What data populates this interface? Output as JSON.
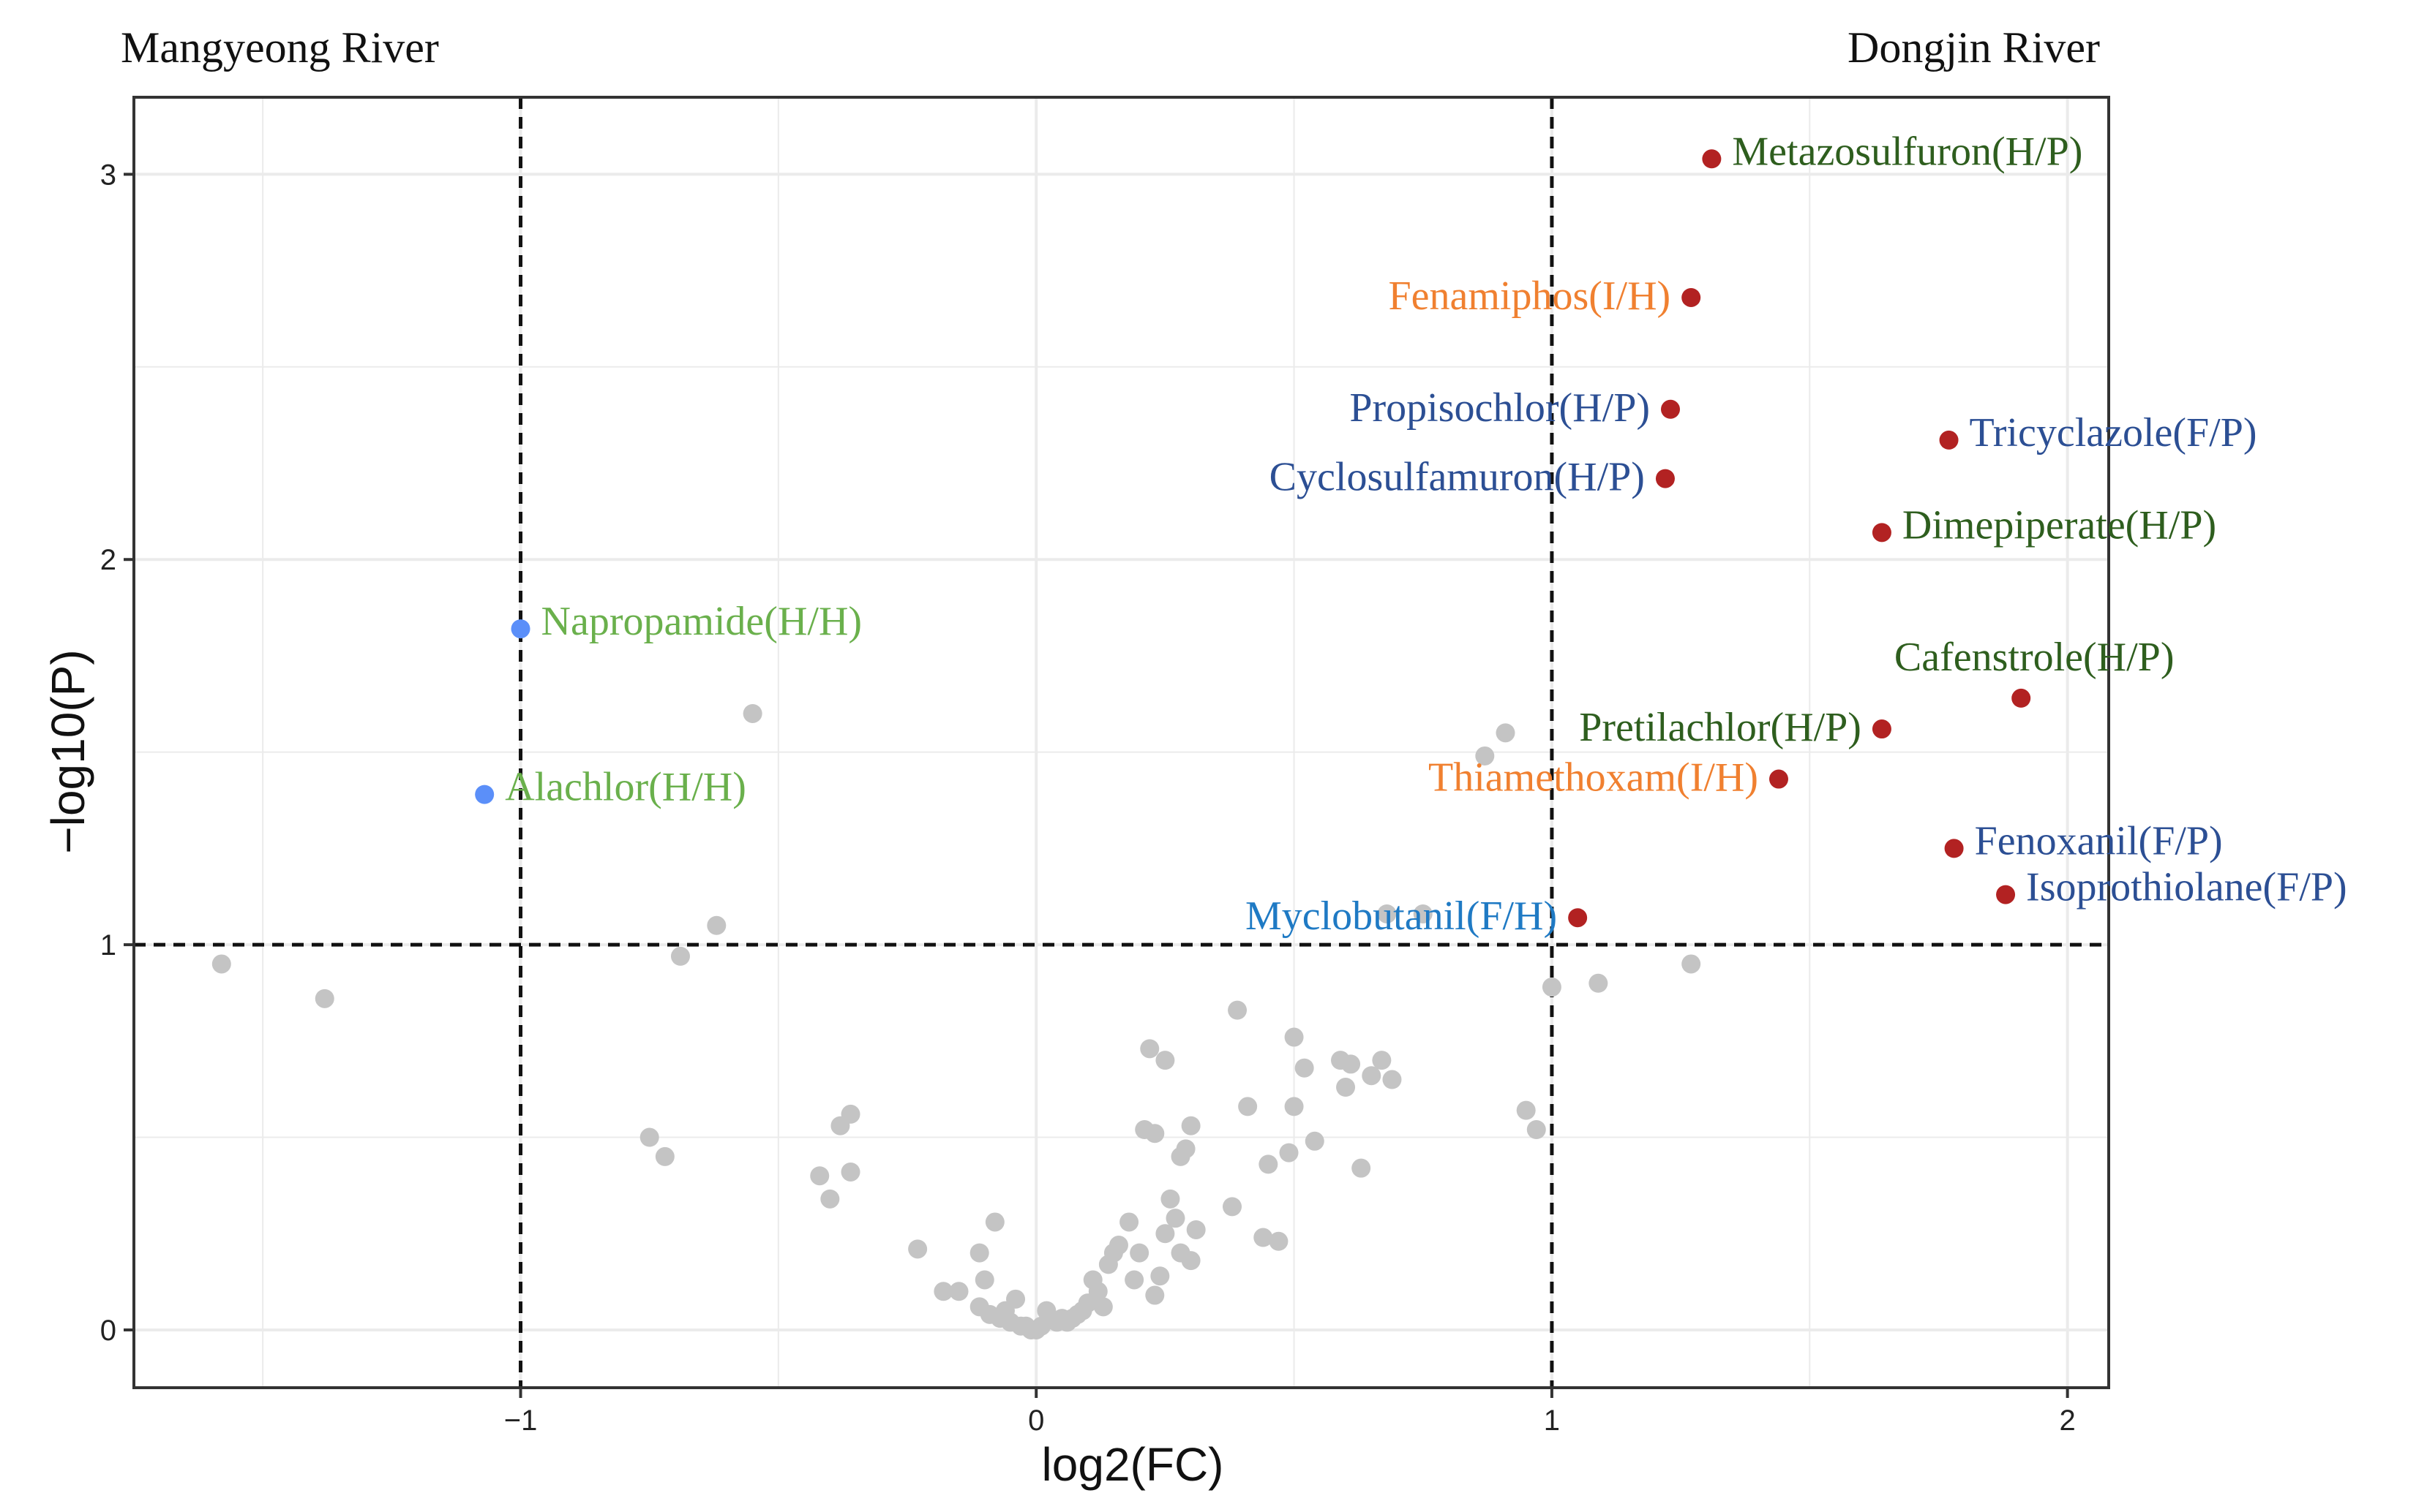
{
  "colors": {
    "background": "#ffffff",
    "grid": "#ebebeb",
    "frame": "#333333",
    "nonsignificant": "#c4c4c4",
    "up": "#b22222",
    "down": "#5b8ff9",
    "label_dark_green": "#2e5e1e",
    "label_light_green": "#6ab04c",
    "label_orange": "#f08030",
    "label_navy": "#2c4f94",
    "label_blue": "#1f7ac4"
  },
  "chart_data": {
    "type": "scatter",
    "title": "",
    "xlabel": "log2(FC)",
    "ylabel": "−log10(P)",
    "xlim": [
      -1.75,
      2.08
    ],
    "ylim": [
      -0.15,
      3.2
    ],
    "xticks": [
      -1,
      0,
      1,
      2
    ],
    "xtick_labels": [
      "−1",
      "0",
      "1",
      "2"
    ],
    "yticks": [
      0,
      1,
      2,
      3
    ],
    "ytick_labels": [
      "0",
      "1",
      "2",
      "3"
    ],
    "minor_x": [
      -1.5,
      -0.5,
      0.5,
      1.5
    ],
    "minor_y": [
      0.5,
      1.5,
      2.5
    ],
    "threshold_lines": {
      "x": [
        -1,
        1
      ],
      "y": [
        1
      ]
    },
    "grid": true,
    "corner_labels": {
      "left": "Mangyeong River",
      "right": "Dongjin River"
    },
    "labeled_points": [
      {
        "x": 1.31,
        "y": 3.04,
        "group": "up",
        "label": "Metazosulfuron(H/P)",
        "label_color": "label_dark_green",
        "anchor": "start"
      },
      {
        "x": 1.27,
        "y": 2.68,
        "group": "up",
        "label": "Fenamiphos(I/H)",
        "label_color": "label_orange",
        "anchor": "end"
      },
      {
        "x": 1.23,
        "y": 2.39,
        "group": "up",
        "label": "Propisochlor(H/P)",
        "label_color": "label_navy",
        "anchor": "end"
      },
      {
        "x": 1.22,
        "y": 2.21,
        "group": "up",
        "label": "Cyclosulfamuron(H/P)",
        "label_color": "label_navy",
        "anchor": "end"
      },
      {
        "x": 1.77,
        "y": 2.31,
        "group": "up",
        "label": "Tricyclazole(F/P)",
        "label_color": "label_navy",
        "anchor": "start"
      },
      {
        "x": 1.64,
        "y": 2.07,
        "group": "up",
        "label": "Dimepiperate(H/P)",
        "label_color": "label_dark_green",
        "anchor": "start"
      },
      {
        "x": 1.91,
        "y": 1.64,
        "group": "up",
        "label": "Cafenstrole(H/P)",
        "label_color": "label_dark_green",
        "anchor": "middle"
      },
      {
        "x": 1.64,
        "y": 1.56,
        "group": "up",
        "label": "Pretilachlor(H/P)",
        "label_color": "label_dark_green",
        "anchor": "end"
      },
      {
        "x": 1.44,
        "y": 1.43,
        "group": "up",
        "label": "Thiamethoxam(I/H)",
        "label_color": "label_orange",
        "anchor": "end"
      },
      {
        "x": 1.78,
        "y": 1.25,
        "group": "up",
        "label": "Fenoxanil(F/P)",
        "label_color": "label_navy",
        "anchor": "start"
      },
      {
        "x": 1.88,
        "y": 1.13,
        "group": "up",
        "label": "Isoprothiolane(F/P)",
        "label_color": "label_navy",
        "anchor": "start"
      },
      {
        "x": 1.05,
        "y": 1.07,
        "group": "up",
        "label": "Myclobutanil(F/H)",
        "label_color": "label_blue",
        "anchor": "end"
      },
      {
        "x": -1.0,
        "y": 1.82,
        "group": "down",
        "label": "Napropamide(H/H)",
        "label_color": "label_light_green",
        "anchor": "start"
      },
      {
        "x": -1.07,
        "y": 1.39,
        "group": "down",
        "label": "Alachlor(H/H)",
        "label_color": "label_light_green",
        "anchor": "start"
      }
    ],
    "background_points": [
      [
        -1.58,
        0.95
      ],
      [
        -1.38,
        0.86
      ],
      [
        -0.55,
        1.6
      ],
      [
        -0.62,
        1.05
      ],
      [
        -0.69,
        0.97
      ],
      [
        -0.75,
        0.5
      ],
      [
        -0.72,
        0.45
      ],
      [
        -0.42,
        0.4
      ],
      [
        -0.4,
        0.34
      ],
      [
        -0.36,
        0.41
      ],
      [
        -0.38,
        0.53
      ],
      [
        -0.36,
        0.56
      ],
      [
        -0.23,
        0.21
      ],
      [
        -0.18,
        0.1
      ],
      [
        -0.15,
        0.1
      ],
      [
        -0.11,
        0.2
      ],
      [
        -0.08,
        0.28
      ],
      [
        -0.1,
        0.13
      ],
      [
        -0.11,
        0.06
      ],
      [
        -0.09,
        0.04
      ],
      [
        -0.07,
        0.03
      ],
      [
        -0.06,
        0.05
      ],
      [
        -0.05,
        0.02
      ],
      [
        -0.04,
        0.08
      ],
      [
        -0.03,
        0.01
      ],
      [
        -0.02,
        0.01
      ],
      [
        -0.01,
        0.0
      ],
      [
        0.0,
        0.0
      ],
      [
        0.01,
        0.01
      ],
      [
        0.02,
        0.05
      ],
      [
        0.04,
        0.02
      ],
      [
        0.05,
        0.03
      ],
      [
        0.06,
        0.02
      ],
      [
        0.07,
        0.03
      ],
      [
        0.08,
        0.04
      ],
      [
        0.09,
        0.05
      ],
      [
        0.1,
        0.07
      ],
      [
        0.11,
        0.13
      ],
      [
        0.12,
        0.1
      ],
      [
        0.13,
        0.06
      ],
      [
        0.14,
        0.17
      ],
      [
        0.15,
        0.2
      ],
      [
        0.16,
        0.22
      ],
      [
        0.18,
        0.28
      ],
      [
        0.19,
        0.13
      ],
      [
        0.2,
        0.2
      ],
      [
        0.21,
        0.52
      ],
      [
        0.22,
        0.73
      ],
      [
        0.23,
        0.51
      ],
      [
        0.23,
        0.09
      ],
      [
        0.24,
        0.14
      ],
      [
        0.25,
        0.7
      ],
      [
        0.25,
        0.25
      ],
      [
        0.26,
        0.34
      ],
      [
        0.27,
        0.29
      ],
      [
        0.28,
        0.2
      ],
      [
        0.28,
        0.45
      ],
      [
        0.29,
        0.47
      ],
      [
        0.3,
        0.53
      ],
      [
        0.3,
        0.18
      ],
      [
        0.31,
        0.26
      ],
      [
        0.38,
        0.32
      ],
      [
        0.39,
        0.83
      ],
      [
        0.41,
        0.58
      ],
      [
        0.44,
        0.24
      ],
      [
        0.45,
        0.43
      ],
      [
        0.47,
        0.23
      ],
      [
        0.49,
        0.46
      ],
      [
        0.5,
        0.58
      ],
      [
        0.5,
        0.76
      ],
      [
        0.52,
        0.68
      ],
      [
        0.54,
        0.49
      ],
      [
        0.59,
        0.7
      ],
      [
        0.6,
        0.63
      ],
      [
        0.61,
        0.69
      ],
      [
        0.63,
        0.42
      ],
      [
        0.65,
        0.66
      ],
      [
        0.67,
        0.7
      ],
      [
        0.69,
        0.65
      ],
      [
        0.68,
        1.08
      ],
      [
        0.75,
        1.08
      ],
      [
        0.87,
        1.49
      ],
      [
        0.91,
        1.55
      ],
      [
        0.95,
        0.57
      ],
      [
        0.97,
        0.52
      ],
      [
        1.0,
        0.89
      ],
      [
        1.09,
        0.9
      ],
      [
        1.27,
        0.95
      ]
    ]
  }
}
